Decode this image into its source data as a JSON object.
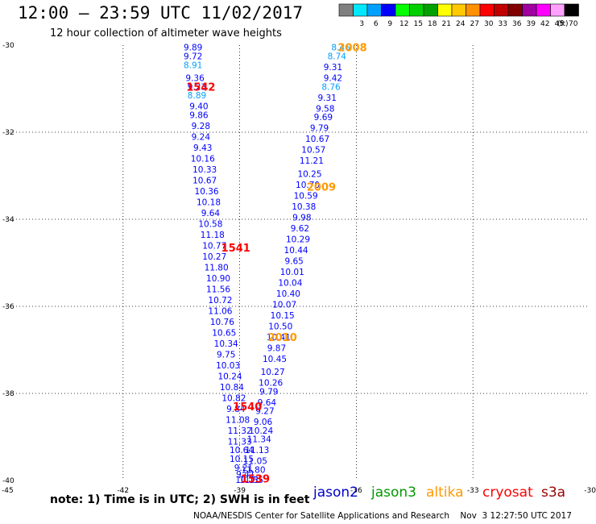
{
  "header": {
    "title": "12:00 – 23:59 UTC 11/02/2017",
    "subtitle": "12 hour collection of altimeter wave heights"
  },
  "colorbar": {
    "unit_label": "(ft)",
    "bins": [
      {
        "label": "",
        "color": "#808080"
      },
      {
        "label": "3",
        "color": "#00e8ff"
      },
      {
        "label": "6",
        "color": "#00a0ff"
      },
      {
        "label": "9",
        "color": "#0000ff"
      },
      {
        "label": "12",
        "color": "#00ff00"
      },
      {
        "label": "15",
        "color": "#00d000"
      },
      {
        "label": "18",
        "color": "#00a000"
      },
      {
        "label": "21",
        "color": "#ffff00"
      },
      {
        "label": "24",
        "color": "#ffc800"
      },
      {
        "label": "27",
        "color": "#ff9000"
      },
      {
        "label": "30",
        "color": "#ff0000"
      },
      {
        "label": "33",
        "color": "#c00000"
      },
      {
        "label": "36",
        "color": "#800000"
      },
      {
        "label": "39",
        "color": "#a000a0"
      },
      {
        "label": "42",
        "color": "#ff00ff"
      },
      {
        "label": "45",
        "color": "#ffa0ff"
      },
      {
        "label": "70",
        "color": "#000000"
      }
    ]
  },
  "chart_data": {
    "type": "scatter",
    "title": "12:00 – 23:59 UTC 11/02/2017",
    "subtitle": "12 hour collection of altimeter wave heights",
    "xlim": [
      -45,
      -30
    ],
    "ylim": [
      -40,
      -30
    ],
    "x_ticks": [
      -45,
      -42,
      -39,
      -36,
      -33,
      -30
    ],
    "y_ticks": [
      -30,
      -32,
      -34,
      -36,
      -38,
      -40
    ],
    "grid": true,
    "legend_position": "bottom",
    "legend": [
      {
        "name": "jason2",
        "color": "#0000cc"
      },
      {
        "name": "jason3",
        "color": "#009900"
      },
      {
        "name": "altika",
        "color": "#ff9900"
      },
      {
        "name": "cryosat",
        "color": "#ff0000"
      },
      {
        "name": "s3a",
        "color": "#990000"
      }
    ],
    "pass_labels": [
      {
        "text": "2008",
        "x": -36.1,
        "y": -30.05,
        "color": "#ff9900"
      },
      {
        "text": "1542",
        "x": -40.0,
        "y": -30.95,
        "color": "#ff0000"
      },
      {
        "text": "2009",
        "x": -36.9,
        "y": -33.25,
        "color": "#ff9900"
      },
      {
        "text": "1541",
        "x": -39.1,
        "y": -34.65,
        "color": "#ff0000"
      },
      {
        "text": "2010",
        "x": -37.9,
        "y": -36.7,
        "color": "#ff9900"
      },
      {
        "text": "1540",
        "x": -38.8,
        "y": -38.3,
        "color": "#ff0000"
      },
      {
        "text": "1539",
        "x": -38.6,
        "y": -39.95,
        "color": "#ff0000"
      }
    ],
    "series": [
      {
        "name": "jason2",
        "points": [
          {
            "x": -36.4,
            "y": -30.05,
            "v": "8.46",
            "c": "#00a0ff"
          },
          {
            "x": -36.5,
            "y": -30.25,
            "v": "8.74",
            "c": "#00a0ff"
          },
          {
            "x": -36.6,
            "y": -30.5,
            "v": "9.31",
            "c": "#0000ff"
          },
          {
            "x": -36.6,
            "y": -30.75,
            "v": "9.42",
            "c": "#0000ff"
          },
          {
            "x": -36.65,
            "y": -30.95,
            "v": "8.76",
            "c": "#00a0ff"
          },
          {
            "x": -36.75,
            "y": -31.2,
            "v": "9.31",
            "c": "#0000ff"
          },
          {
            "x": -36.8,
            "y": -31.45,
            "v": "9.58",
            "c": "#0000ff"
          },
          {
            "x": -36.85,
            "y": -31.65,
            "v": "9.69",
            "c": "#0000ff"
          },
          {
            "x": -36.95,
            "y": -31.9,
            "v": "9.79",
            "c": "#0000ff"
          },
          {
            "x": -37.0,
            "y": -32.15,
            "v": "10.67",
            "c": "#0000ff"
          },
          {
            "x": -37.1,
            "y": -32.4,
            "v": "10.57",
            "c": "#0000ff"
          },
          {
            "x": -37.15,
            "y": -32.65,
            "v": "11.21",
            "c": "#0000ff"
          },
          {
            "x": -37.2,
            "y": -32.95,
            "v": "10.25",
            "c": "#0000ff"
          },
          {
            "x": -37.25,
            "y": -33.2,
            "v": "10.70",
            "c": "#0000ff"
          },
          {
            "x": -37.3,
            "y": -33.45,
            "v": "10.59",
            "c": "#0000ff"
          },
          {
            "x": -37.35,
            "y": -33.7,
            "v": "10.38",
            "c": "#0000ff"
          },
          {
            "x": -37.4,
            "y": -33.95,
            "v": "9.98",
            "c": "#0000ff"
          },
          {
            "x": -37.45,
            "y": -34.2,
            "v": "9.62",
            "c": "#0000ff"
          },
          {
            "x": -37.5,
            "y": -34.45,
            "v": "10.29",
            "c": "#0000ff"
          },
          {
            "x": -37.55,
            "y": -34.7,
            "v": "10.44",
            "c": "#0000ff"
          },
          {
            "x": -37.6,
            "y": -34.95,
            "v": "9.65",
            "c": "#0000ff"
          },
          {
            "x": -37.65,
            "y": -35.2,
            "v": "10.01",
            "c": "#0000ff"
          },
          {
            "x": -37.7,
            "y": -35.45,
            "v": "10.04",
            "c": "#0000ff"
          },
          {
            "x": -37.75,
            "y": -35.7,
            "v": "10.40",
            "c": "#0000ff"
          },
          {
            "x": -37.85,
            "y": -35.95,
            "v": "10.07",
            "c": "#0000ff"
          },
          {
            "x": -37.9,
            "y": -36.2,
            "v": "10.15",
            "c": "#0000ff"
          },
          {
            "x": -37.95,
            "y": -36.45,
            "v": "10.50",
            "c": "#0000ff"
          },
          {
            "x": -38.0,
            "y": -36.7,
            "v": "10.41",
            "c": "#0000ff"
          },
          {
            "x": -38.05,
            "y": -36.95,
            "v": "9.87",
            "c": "#0000ff"
          },
          {
            "x": -38.1,
            "y": -37.2,
            "v": "10.45",
            "c": "#0000ff"
          },
          {
            "x": -38.15,
            "y": -37.5,
            "v": "10.27",
            "c": "#0000ff"
          },
          {
            "x": -38.2,
            "y": -37.75,
            "v": "10.26",
            "c": "#0000ff"
          },
          {
            "x": -38.25,
            "y": -37.95,
            "v": "9.79",
            "c": "#0000ff"
          },
          {
            "x": -38.3,
            "y": -38.2,
            "v": "9.64",
            "c": "#0000ff"
          },
          {
            "x": -38.35,
            "y": -38.4,
            "v": "9.27",
            "c": "#0000ff"
          },
          {
            "x": -38.4,
            "y": -38.65,
            "v": "9.06",
            "c": "#0000ff"
          },
          {
            "x": -38.45,
            "y": -38.85,
            "v": "10.24",
            "c": "#0000ff"
          },
          {
            "x": -38.5,
            "y": -39.05,
            "v": "11.34",
            "c": "#0000ff"
          },
          {
            "x": -38.55,
            "y": -39.3,
            "v": "11.13",
            "c": "#0000ff"
          },
          {
            "x": -38.6,
            "y": -39.55,
            "v": "11.05",
            "c": "#0000ff"
          },
          {
            "x": -38.65,
            "y": -39.75,
            "v": "11.80",
            "c": "#0000ff"
          },
          {
            "x": -38.7,
            "y": -39.98,
            "v": "11.55",
            "c": "#0000ff"
          },
          {
            "x": -40.2,
            "y": -30.05,
            "v": "9.89",
            "c": "#0000ff"
          },
          {
            "x": -40.2,
            "y": -30.25,
            "v": "9.72",
            "c": "#0000ff"
          },
          {
            "x": -40.2,
            "y": -30.45,
            "v": "8.91",
            "c": "#00a0ff"
          },
          {
            "x": -40.15,
            "y": -30.75,
            "v": "9.36",
            "c": "#0000ff"
          },
          {
            "x": -40.1,
            "y": -30.95,
            "v": "9.23",
            "c": "#0000ff"
          },
          {
            "x": -40.1,
            "y": -31.15,
            "v": "8.89",
            "c": "#00a0ff"
          },
          {
            "x": -40.05,
            "y": -31.4,
            "v": "9.40",
            "c": "#0000ff"
          },
          {
            "x": -40.05,
            "y": -31.6,
            "v": "9.86",
            "c": "#0000ff"
          },
          {
            "x": -40.0,
            "y": -31.85,
            "v": "9.28",
            "c": "#0000ff"
          },
          {
            "x": -40.0,
            "y": -32.1,
            "v": "9.24",
            "c": "#0000ff"
          },
          {
            "x": -39.95,
            "y": -32.35,
            "v": "9.43",
            "c": "#0000ff"
          },
          {
            "x": -39.95,
            "y": -32.6,
            "v": "10.16",
            "c": "#0000ff"
          },
          {
            "x": -39.9,
            "y": -32.85,
            "v": "10.33",
            "c": "#0000ff"
          },
          {
            "x": -39.9,
            "y": -33.1,
            "v": "10.67",
            "c": "#0000ff"
          },
          {
            "x": -39.85,
            "y": -33.35,
            "v": "10.36",
            "c": "#0000ff"
          },
          {
            "x": -39.8,
            "y": -33.6,
            "v": "10.18",
            "c": "#0000ff"
          },
          {
            "x": -39.75,
            "y": -33.85,
            "v": "9.64",
            "c": "#0000ff"
          },
          {
            "x": -39.75,
            "y": -34.1,
            "v": "10.58",
            "c": "#0000ff"
          },
          {
            "x": -39.7,
            "y": -34.35,
            "v": "11.18",
            "c": "#0000ff"
          },
          {
            "x": -39.65,
            "y": -34.6,
            "v": "10.77",
            "c": "#0000ff"
          },
          {
            "x": -39.65,
            "y": -34.85,
            "v": "10.27",
            "c": "#0000ff"
          },
          {
            "x": -39.6,
            "y": -35.1,
            "v": "11.80",
            "c": "#0000ff"
          },
          {
            "x": -39.55,
            "y": -35.35,
            "v": "10.90",
            "c": "#0000ff"
          },
          {
            "x": -39.55,
            "y": -35.6,
            "v": "11.56",
            "c": "#0000ff"
          },
          {
            "x": -39.5,
            "y": -35.85,
            "v": "10.72",
            "c": "#0000ff"
          },
          {
            "x": -39.5,
            "y": -36.1,
            "v": "11.06",
            "c": "#0000ff"
          },
          {
            "x": -39.45,
            "y": -36.35,
            "v": "10.76",
            "c": "#0000ff"
          },
          {
            "x": -39.4,
            "y": -36.6,
            "v": "10.65",
            "c": "#0000ff"
          },
          {
            "x": -39.35,
            "y": -36.85,
            "v": "10.34",
            "c": "#0000ff"
          },
          {
            "x": -39.35,
            "y": -37.1,
            "v": "9.75",
            "c": "#0000ff"
          },
          {
            "x": -39.3,
            "y": -37.35,
            "v": "10.03",
            "c": "#0000ff"
          },
          {
            "x": -39.25,
            "y": -37.6,
            "v": "10.24",
            "c": "#0000ff"
          },
          {
            "x": -39.2,
            "y": -37.85,
            "v": "10.84",
            "c": "#0000ff"
          },
          {
            "x": -39.15,
            "y": -38.1,
            "v": "10.82",
            "c": "#0000ff"
          },
          {
            "x": -39.1,
            "y": -38.35,
            "v": "9.84",
            "c": "#0000ff"
          },
          {
            "x": -39.05,
            "y": -38.6,
            "v": "11.08",
            "c": "#0000ff"
          },
          {
            "x": -39.0,
            "y": -38.85,
            "v": "11.32",
            "c": "#0000ff"
          },
          {
            "x": -39.0,
            "y": -39.1,
            "v": "11.33",
            "c": "#0000ff"
          },
          {
            "x": -38.95,
            "y": -39.3,
            "v": "10.64",
            "c": "#0000ff"
          },
          {
            "x": -38.95,
            "y": -39.5,
            "v": "10.15",
            "c": "#0000ff"
          },
          {
            "x": -38.9,
            "y": -39.7,
            "v": "9.21",
            "c": "#0000ff"
          },
          {
            "x": -38.85,
            "y": -39.85,
            "v": "9.41",
            "c": "#0000ff"
          },
          {
            "x": -38.8,
            "y": -39.98,
            "v": "10.11",
            "c": "#0000ff"
          }
        ]
      }
    ]
  },
  "note": "note:  1) Time is in UTC;  2) SWH is in feet",
  "footer": "NOAA/NESDIS Center for Satellite Applications and Research    Nov  3 12:27:50 UTC 2017"
}
